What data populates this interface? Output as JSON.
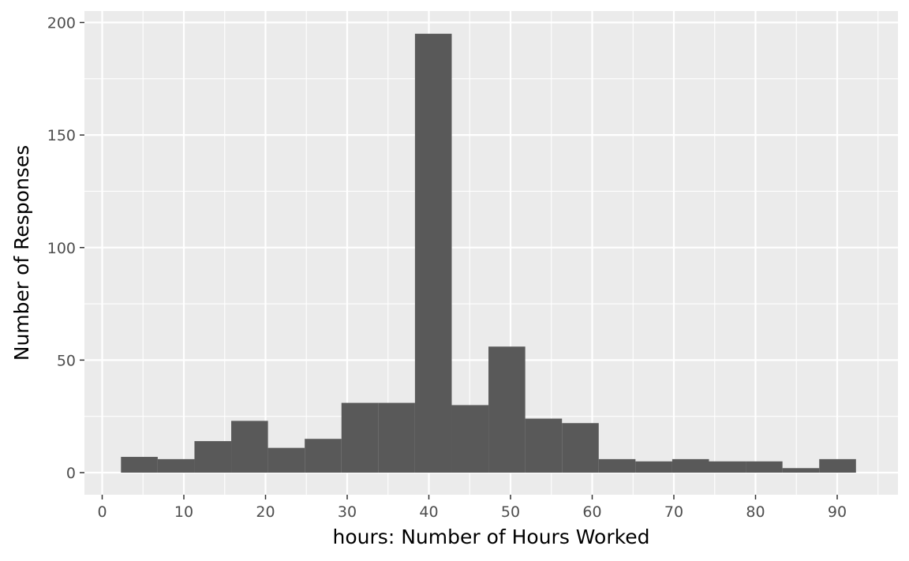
{
  "chart_data": {
    "type": "bar",
    "xlabel": "hours: Number of Hours Worked",
    "ylabel": "Number of Responses",
    "xlim": [
      0,
      95
    ],
    "ylim": [
      0,
      200
    ],
    "x_ticks": [
      "0",
      "10",
      "20",
      "30",
      "40",
      "50",
      "60",
      "70",
      "80",
      "90"
    ],
    "y_ticks": [
      "0",
      "50",
      "100",
      "150",
      "200"
    ],
    "grid": true,
    "bins": [
      {
        "x0": 2.3,
        "x1": 6.8,
        "count": 7
      },
      {
        "x0": 6.8,
        "x1": 11.3,
        "count": 6
      },
      {
        "x0": 11.3,
        "x1": 15.8,
        "count": 14
      },
      {
        "x0": 15.8,
        "x1": 20.3,
        "count": 23
      },
      {
        "x0": 20.3,
        "x1": 24.8,
        "count": 11
      },
      {
        "x0": 24.8,
        "x1": 29.3,
        "count": 15
      },
      {
        "x0": 29.3,
        "x1": 33.8,
        "count": 31
      },
      {
        "x0": 33.8,
        "x1": 38.3,
        "count": 31
      },
      {
        "x0": 38.3,
        "x1": 42.8,
        "count": 195
      },
      {
        "x0": 42.8,
        "x1": 47.3,
        "count": 30
      },
      {
        "x0": 47.3,
        "x1": 51.8,
        "count": 56
      },
      {
        "x0": 51.8,
        "x1": 56.3,
        "count": 24
      },
      {
        "x0": 56.3,
        "x1": 60.8,
        "count": 22
      },
      {
        "x0": 60.8,
        "x1": 65.3,
        "count": 6
      },
      {
        "x0": 65.3,
        "x1": 69.8,
        "count": 5
      },
      {
        "x0": 69.8,
        "x1": 74.3,
        "count": 6
      },
      {
        "x0": 74.3,
        "x1": 78.8,
        "count": 5
      },
      {
        "x0": 78.8,
        "x1": 83.3,
        "count": 5
      },
      {
        "x0": 83.3,
        "x1": 87.8,
        "count": 2
      },
      {
        "x0": 87.8,
        "x1": 92.3,
        "count": 6
      }
    ],
    "colors": {
      "panel_background": "#ebebeb",
      "grid": "#ffffff",
      "bar_fill": "#595959",
      "tick_text": "#4d4d4d"
    }
  }
}
